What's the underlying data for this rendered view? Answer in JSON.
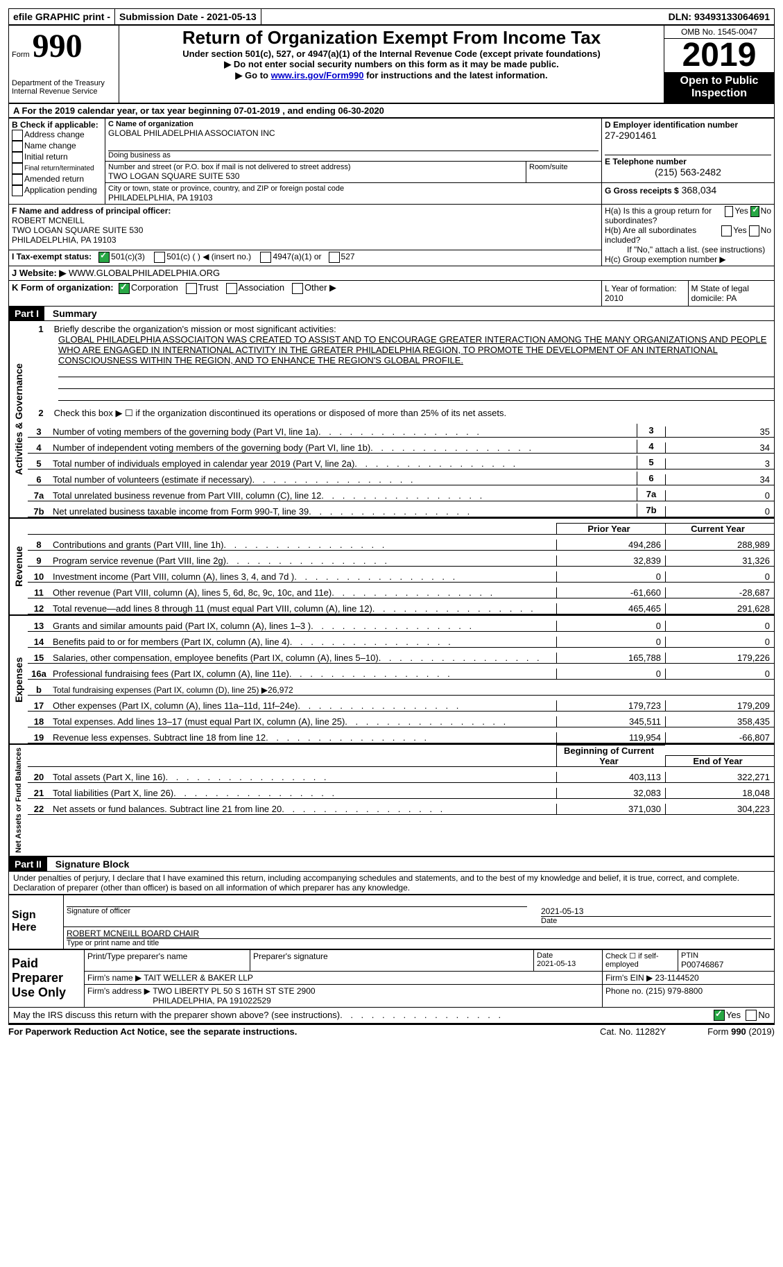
{
  "top": {
    "efile": "efile GRAPHIC print - ",
    "submission": "Submission Date - 2021-05-13",
    "dln": "DLN: 93493133064691"
  },
  "header": {
    "form_word": "Form",
    "form_num": "990",
    "title": "Return of Organization Exempt From Income Tax",
    "subtitle": "Under section 501(c), 527, or 4947(a)(1) of the Internal Revenue Code (except private foundations)",
    "note1": "▶ Do not enter social security numbers on this form as it may be made public.",
    "note2_a": "▶ Go to ",
    "note2_link": "www.irs.gov/Form990",
    "note2_b": " for instructions and the latest information.",
    "dept": "Department of the Treasury\nInternal Revenue Service",
    "omb": "OMB No. 1545-0047",
    "year": "2019",
    "open": "Open to Public Inspection"
  },
  "a_line": "A For the 2019 calendar year, or tax year beginning 07-01-2019    , and ending 06-30-2020",
  "b": {
    "title": "B Check if applicable:",
    "addr": "Address change",
    "name": "Name change",
    "init": "Initial return",
    "final": "Final return/terminated",
    "amend": "Amended return",
    "app": "Application pending"
  },
  "c": {
    "label": "C Name of organization",
    "value": "GLOBAL PHILADELPHIA ASSOCIATON INC",
    "dba": "Doing business as",
    "street_label": "Number and street (or P.O. box if mail is not delivered to street address)",
    "street": "TWO LOGAN SQUARE SUITE 530",
    "room": "Room/suite",
    "city_label": "City or town, state or province, country, and ZIP or foreign postal code",
    "city": "PHILADELPLHIA, PA  19103"
  },
  "d": {
    "label": "D Employer identification number",
    "value": "27-2901461"
  },
  "e": {
    "label": "E Telephone number",
    "value": "(215) 563-2482"
  },
  "g": {
    "label": "G Gross receipts $",
    "value": "368,034"
  },
  "f": {
    "label": "F Name and address of principal officer:",
    "name": "ROBERT MCNEILL",
    "addr1": "TWO LOGAN SQUARE SUITE 530",
    "addr2": "PHILADELPLHIA, PA  19103"
  },
  "h": {
    "a": "H(a)  Is this a group return for subordinates?",
    "b": "H(b)  Are all subordinates included?",
    "note": "If \"No,\" attach a list. (see instructions)",
    "c": "H(c)  Group exemption number ▶"
  },
  "i_label": "I    Tax-exempt status:",
  "i_501c3": "501(c)(3)",
  "i_501c": "501(c) (  ) ◀ (insert no.)",
  "i_4947": "4947(a)(1) or",
  "i_527": "527",
  "j_label": "J    Website: ▶",
  "j_value": "WWW.GLOBALPHILADELPHIA.ORG",
  "k_label": "K Form of organization:",
  "k_corp": "Corporation",
  "k_trust": "Trust",
  "k_assoc": "Association",
  "k_other": "Other ▶",
  "l": "L Year of formation: 2010",
  "m": "M State of legal domicile: PA",
  "part1": "Part I",
  "summary": "Summary",
  "q1": "Briefly describe the organization's mission or most significant activities:",
  "mission": "GLOBAL PHILADELPHIA ASSOCIAITON WAS CREATED TO ASSIST AND TO ENCOURAGE GREATER INTERACTION AMONG THE MANY ORGANIZATIONS AND PEOPLE WHO ARE ENGAGED IN INTERNATIONAL ACTIVITY IN THE GREATER PHILADELPHIA REGION, TO PROMOTE THE DEVELOPMENT OF AN INTERNATIONAL CONSCIOUSNESS WITHIN THE REGION, AND TO ENHANCE THE REGION'S GLOBAL PROFILE.",
  "q2": "Check this box ▶ ☐  if the organization discontinued its operations or disposed of more than 25% of its net assets.",
  "lines_single": [
    {
      "n": "3",
      "t": "Number of voting members of the governing body (Part VI, line 1a)",
      "v": "35"
    },
    {
      "n": "4",
      "t": "Number of independent voting members of the governing body (Part VI, line 1b)",
      "v": "34"
    },
    {
      "n": "5",
      "t": "Total number of individuals employed in calendar year 2019 (Part V, line 2a)",
      "v": "3"
    },
    {
      "n": "6",
      "t": "Total number of volunteers (estimate if necessary)",
      "v": "34"
    },
    {
      "n": "7a",
      "t": "Total unrelated business revenue from Part VIII, column (C), line 12",
      "v": "0"
    },
    {
      "n": "7b",
      "t": "Net unrelated business taxable income from Form 990-T, line 39",
      "lbl": "",
      "v": "0"
    }
  ],
  "col_prior": "Prior Year",
  "col_current": "Current Year",
  "revenue_lines": [
    {
      "n": "8",
      "t": "Contributions and grants (Part VIII, line 1h)",
      "p": "494,286",
      "c": "288,989"
    },
    {
      "n": "9",
      "t": "Program service revenue (Part VIII, line 2g)",
      "p": "32,839",
      "c": "31,326"
    },
    {
      "n": "10",
      "t": "Investment income (Part VIII, column (A), lines 3, 4, and 7d )",
      "p": "0",
      "c": "0"
    },
    {
      "n": "11",
      "t": "Other revenue (Part VIII, column (A), lines 5, 6d, 8c, 9c, 10c, and 11e)",
      "p": "-61,660",
      "c": "-28,687"
    },
    {
      "n": "12",
      "t": "Total revenue—add lines 8 through 11 (must equal Part VIII, column (A), line 12)",
      "p": "465,465",
      "c": "291,628"
    }
  ],
  "expense_lines": [
    {
      "n": "13",
      "t": "Grants and similar amounts paid (Part IX, column (A), lines 1–3 )",
      "p": "0",
      "c": "0"
    },
    {
      "n": "14",
      "t": "Benefits paid to or for members (Part IX, column (A), line 4)",
      "p": "0",
      "c": "0"
    },
    {
      "n": "15",
      "t": "Salaries, other compensation, employee benefits (Part IX, column (A), lines 5–10)",
      "p": "165,788",
      "c": "179,226"
    },
    {
      "n": "16a",
      "t": "Professional fundraising fees (Part IX, column (A), line 11e)",
      "p": "0",
      "c": "0"
    },
    {
      "n": "b",
      "t": "Total fundraising expenses (Part IX, column (D), line 25) ▶26,972",
      "shaded": true
    },
    {
      "n": "17",
      "t": "Other expenses (Part IX, column (A), lines 11a–11d, 11f–24e)",
      "p": "179,723",
      "c": "179,209"
    },
    {
      "n": "18",
      "t": "Total expenses. Add lines 13–17 (must equal Part IX, column (A), line 25)",
      "p": "345,511",
      "c": "358,435"
    },
    {
      "n": "19",
      "t": "Revenue less expenses. Subtract line 18 from line 12",
      "p": "119,954",
      "c": "-66,807"
    }
  ],
  "col_begin": "Beginning of Current Year",
  "col_end": "End of Year",
  "balance_lines": [
    {
      "n": "20",
      "t": "Total assets (Part X, line 16)",
      "p": "403,113",
      "c": "322,271"
    },
    {
      "n": "21",
      "t": "Total liabilities (Part X, line 26)",
      "p": "32,083",
      "c": "18,048"
    },
    {
      "n": "22",
      "t": "Net assets or fund balances. Subtract line 21 from line 20",
      "p": "371,030",
      "c": "304,223"
    }
  ],
  "part2": "Part II",
  "sig_block": "Signature Block",
  "sig_decl": "Under penalties of perjury, I declare that I have examined this return, including accompanying schedules and statements, and to the best of my knowledge and belief, it is true, correct, and complete. Declaration of preparer (other than officer) is based on all information of which preparer has any knowledge.",
  "sign_here": "Sign Here",
  "sig_officer": "Signature of officer",
  "sig_date_label": "Date",
  "sig_date": "2021-05-13",
  "sig_name": "ROBERT MCNEILL  BOARD CHAIR",
  "sig_name_label": "Type or print name and title",
  "paid_prep": "Paid Preparer Use Only",
  "prep_name_label": "Print/Type preparer's name",
  "prep_sig_label": "Preparer's signature",
  "prep_date": "Date\n2021-05-13",
  "prep_check": "Check ☐ if self-employed",
  "ptin_label": "PTIN",
  "ptin": "P00746867",
  "firm_name_label": "Firm's name    ▶",
  "firm_name": "TAIT WELLER & BAKER LLP",
  "firm_ein_label": "Firm's EIN ▶",
  "firm_ein": "23-1144520",
  "firm_addr_label": "Firm's address ▶",
  "firm_addr": "TWO LIBERTY PL 50 S 16TH ST STE 2900\nPHILADELPHIA, PA  191022529",
  "firm_phone_label": "Phone no.",
  "firm_phone": "(215) 979-8800",
  "discuss": "May the IRS discuss this return with the preparer shown above? (see instructions)",
  "yes": "Yes",
  "no": "No",
  "paperwork": "For Paperwork Reduction Act Notice, see the separate instructions.",
  "cat": "Cat. No. 11282Y",
  "form_foot": "Form 990 (2019)",
  "sides": {
    "gov": "Activities & Governance",
    "rev": "Revenue",
    "exp": "Expenses",
    "bal": "Net Assets or Fund Balances"
  }
}
